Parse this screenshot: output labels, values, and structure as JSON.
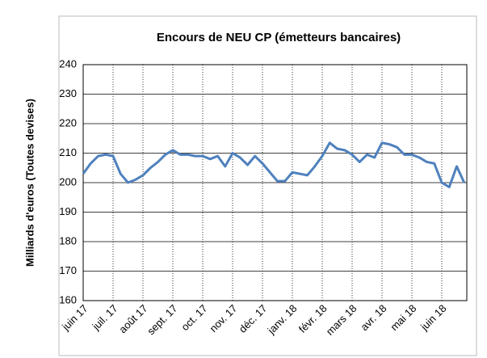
{
  "chart_data": {
    "type": "line",
    "title": "Encours de NEU CP (émetteurs bancaires)",
    "ylabel": "Milliards d'euros (Toutes devises)",
    "categories": [
      "juin 17",
      null,
      null,
      null,
      "juil. 17",
      null,
      null,
      null,
      "août 17",
      null,
      null,
      null,
      "sept. 17",
      null,
      null,
      null,
      "oct. 17",
      null,
      null,
      null,
      "nov. 17",
      null,
      null,
      null,
      "déc. 17",
      null,
      null,
      null,
      "janv. 18",
      null,
      null,
      null,
      "févr. 18",
      null,
      null,
      null,
      "mars 18",
      null,
      null,
      null,
      "avr. 18",
      null,
      null,
      null,
      "mai 18",
      null,
      null,
      null,
      "juin 18",
      null,
      null,
      null
    ],
    "series": [
      {
        "name": "Encours",
        "color": "#4f81bd",
        "values": [
          203,
          206.5,
          209,
          209.5,
          209,
          203,
          200,
          201,
          202.5,
          205,
          207,
          209.5,
          211,
          209.5,
          209.5,
          209,
          209,
          208,
          209,
          205.5,
          210,
          208.5,
          206,
          209,
          206.5,
          203.5,
          200.5,
          200.5,
          203.5,
          203,
          202.5,
          205.5,
          209,
          213.5,
          211.5,
          211,
          209.5,
          207,
          209.5,
          208.5,
          213.5,
          213,
          212,
          209.5,
          209.5,
          208.5,
          207,
          206.5,
          200,
          198.5,
          205.5,
          200
        ]
      }
    ],
    "ylim": [
      160,
      240
    ],
    "yticks": [
      160,
      170,
      180,
      190,
      200,
      210,
      220,
      230,
      240
    ],
    "grid": true
  }
}
